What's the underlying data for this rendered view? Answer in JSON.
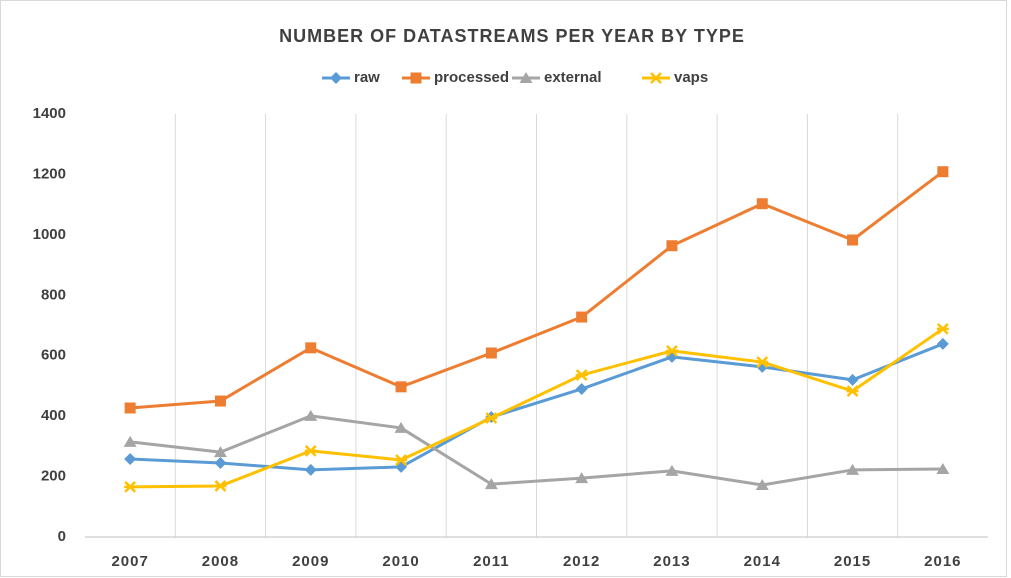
{
  "chart_data": {
    "type": "line",
    "title": "NUMBER OF DATASTREAMS PER YEAR BY TYPE",
    "categories": [
      "2007",
      "2008",
      "2009",
      "2010",
      "2011",
      "2012",
      "2013",
      "2014",
      "2015",
      "2016"
    ],
    "series": [
      {
        "name": "raw",
        "color": "#5b9bd5",
        "marker": "diamond",
        "values": [
          258,
          245,
          222,
          232,
          397,
          490,
          596,
          563,
          520,
          639
        ]
      },
      {
        "name": "processed",
        "color": "#ed7d31",
        "marker": "square",
        "values": [
          427,
          450,
          626,
          497,
          609,
          728,
          964,
          1103,
          983,
          1209
        ]
      },
      {
        "name": "external",
        "color": "#a5a5a5",
        "marker": "triangle",
        "values": [
          315,
          281,
          401,
          361,
          175,
          195,
          219,
          172,
          222,
          225
        ]
      },
      {
        "name": "vaps",
        "color": "#ffc000",
        "marker": "x",
        "values": [
          166,
          169,
          285,
          255,
          394,
          536,
          616,
          579,
          483,
          689
        ]
      }
    ],
    "ylim": [
      0,
      1400
    ],
    "yticks": [
      0,
      200,
      400,
      600,
      800,
      1000,
      1200,
      1400
    ],
    "grid": true,
    "legend": "top"
  }
}
